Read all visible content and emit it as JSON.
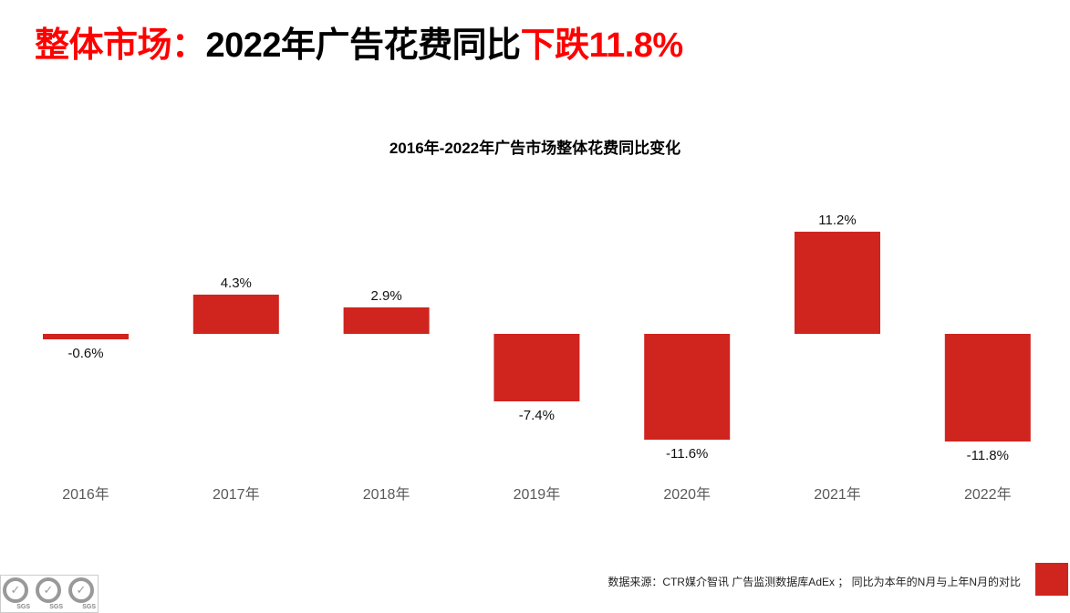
{
  "title": {
    "part1": "整体市场：",
    "part2": "2022年广告花费同比",
    "part3": "下跌11.8%"
  },
  "footnote": "数据来源：CTR媒介智讯 广告监测数据库AdEx ； 同比为本年的N月与上年N月的对比",
  "badges": [
    "SGS",
    "SGS",
    "SGS"
  ],
  "colors": {
    "bar": "#d0241e",
    "accent": "#ff0000"
  },
  "chart_data": {
    "type": "bar",
    "title": "2016年-2022年广告市场整体花费同比变化",
    "categories": [
      "2016年",
      "2017年",
      "2018年",
      "2019年",
      "2020年",
      "2021年",
      "2022年"
    ],
    "values": [
      -0.6,
      4.3,
      2.9,
      -7.4,
      -11.6,
      11.2,
      -11.8
    ],
    "labels": [
      "-0.6%",
      "4.3%",
      "2.9%",
      "-7.4%",
      "-11.6%",
      "11.2%",
      "-11.8%"
    ],
    "xlabel": "",
    "ylabel": "",
    "ylim": [
      -12,
      12
    ],
    "grid": false,
    "legend": "none"
  }
}
